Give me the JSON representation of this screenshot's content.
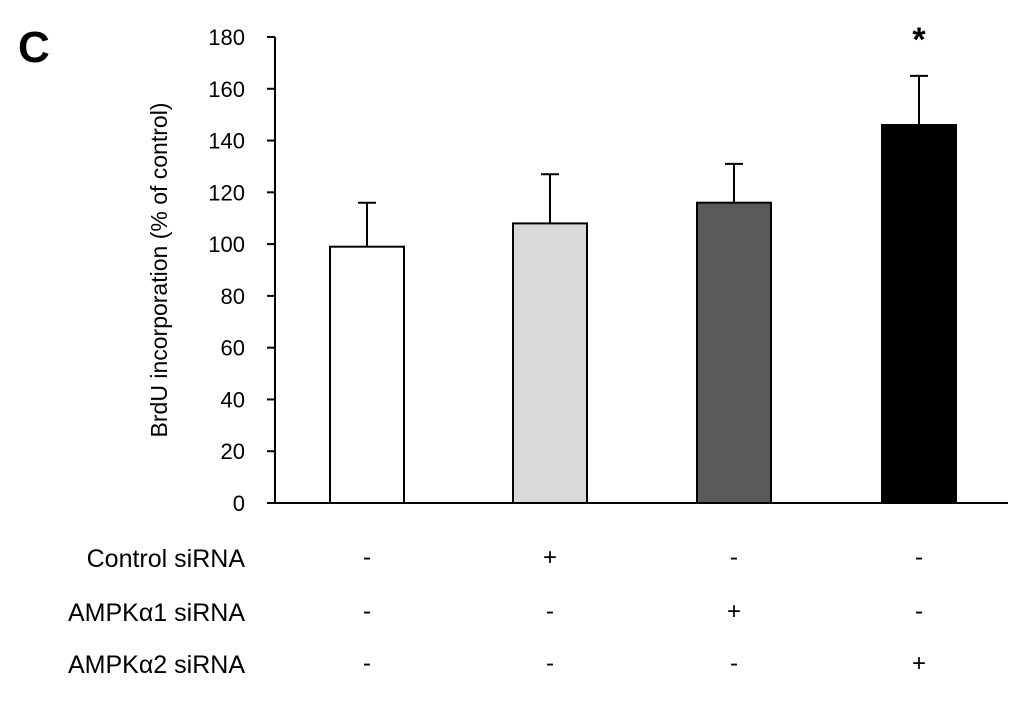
{
  "chart_data": {
    "type": "bar",
    "panel_label": "C",
    "ylabel": "BrdU incorporation  (% of control)",
    "xlabel": "",
    "ylim": [
      0,
      180
    ],
    "yticks": [
      0,
      20,
      40,
      60,
      80,
      100,
      120,
      140,
      160,
      180
    ],
    "grid": false,
    "legend": "none",
    "bars": [
      {
        "value": 99,
        "error": 17,
        "color": "#ffffff",
        "significance": ""
      },
      {
        "value": 108,
        "error": 19,
        "color": "#d9d9d9",
        "significance": ""
      },
      {
        "value": 116,
        "error": 15,
        "color": "#595959",
        "significance": ""
      },
      {
        "value": 146,
        "error": 19,
        "color": "#000000",
        "significance": "*"
      }
    ],
    "conditions": [
      {
        "label": "Control siRNA",
        "marks": [
          "-",
          "+",
          "-",
          "-"
        ]
      },
      {
        "label": "AMPKα1 siRNA",
        "marks": [
          "-",
          "-",
          "+",
          "-"
        ]
      },
      {
        "label": "AMPKα2 siRNA",
        "marks": [
          "-",
          "-",
          "-",
          "+"
        ]
      }
    ]
  }
}
